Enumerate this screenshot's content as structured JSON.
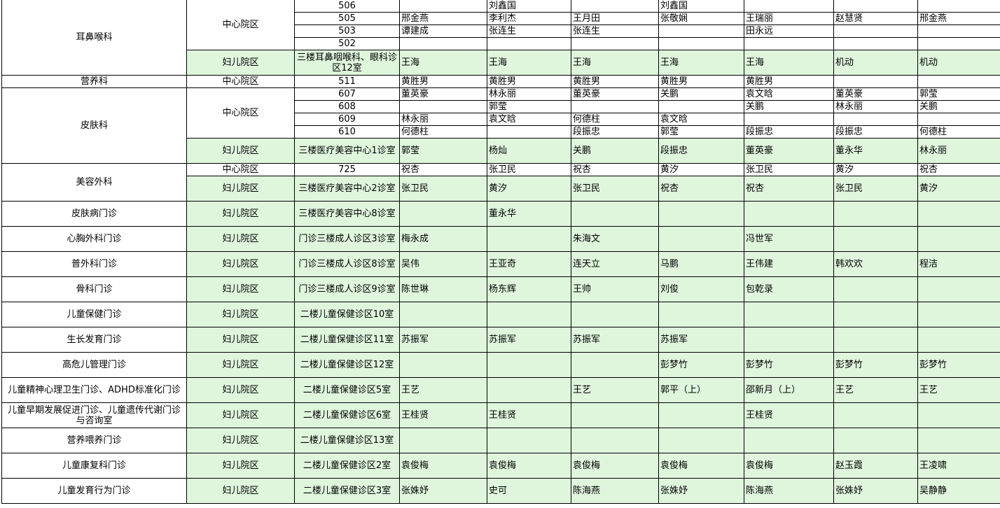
{
  "colors": {
    "green_fill": "#dff6dd",
    "border": "#000000"
  },
  "rows": [
    {
      "dept": "耳鼻喉科",
      "dept_span": 5,
      "campus": "中心院区",
      "campus_span": 4,
      "room": "506",
      "cells": [
        "",
        "刘鑫国",
        "",
        "刘鑫国",
        "",
        "",
        ""
      ],
      "green": false,
      "tall": false
    },
    {
      "room": "505",
      "cells": [
        "邢金燕",
        "李利杰",
        "王月田",
        "张敬娴",
        "王瑞丽",
        "赵慧贤",
        "邢金燕"
      ],
      "green": false,
      "tall": false
    },
    {
      "room": "503",
      "cells": [
        "谭建成",
        "张连生",
        "张连生",
        "",
        "田永远",
        "",
        ""
      ],
      "green": false,
      "tall": false
    },
    {
      "room": "502",
      "cells": [
        "",
        "",
        "",
        "",
        "",
        "",
        ""
      ],
      "green": false,
      "tall": false
    },
    {
      "campus": "妇儿院区",
      "campus_span": 1,
      "room": "三楼耳鼻咽喉科、眼科诊区12室",
      "cells": [
        "王海",
        "王海",
        "王海",
        "王海",
        "王海",
        "机动",
        "机动"
      ],
      "green": true,
      "tall": true
    },
    {
      "dept": "营养科",
      "dept_span": 1,
      "campus": "中心院区",
      "campus_span": 1,
      "room": "511",
      "cells": [
        "黄胜男",
        "黄胜男",
        "黄胜男",
        "黄胜男",
        "黄胜男",
        "",
        ""
      ],
      "green": false,
      "tall": false
    },
    {
      "dept": "皮肤科",
      "dept_span": 5,
      "campus": "中心院区",
      "campus_span": 4,
      "room": "607",
      "cells": [
        "董英豪",
        "林永丽",
        "董英豪",
        "关鹏",
        "袁文晗",
        "董英豪",
        "郭莹"
      ],
      "green": false,
      "tall": false
    },
    {
      "room": "608",
      "cells": [
        "",
        "郭莹",
        "",
        "",
        "关鹏",
        "林永丽",
        "关鹏"
      ],
      "green": false,
      "tall": false
    },
    {
      "room": "609",
      "cells": [
        "林永丽",
        "袁文晗",
        "何德柱",
        "袁文晗",
        "",
        "",
        ""
      ],
      "green": false,
      "tall": false
    },
    {
      "room": "610",
      "cells": [
        "何德柱",
        "",
        "段振忠",
        "郭莹",
        "段振忠",
        "段振忠",
        "何德柱"
      ],
      "green": false,
      "tall": false
    },
    {
      "campus": "妇儿院区",
      "campus_span": 1,
      "room": "三楼医疗美容中心1诊室",
      "cells": [
        "郭莹",
        "杨灿",
        "关鹏",
        "段振忠",
        "董英豪",
        "董永华",
        "林永丽"
      ],
      "green": true,
      "tall": true
    },
    {
      "dept": "美容外科",
      "dept_span": 2,
      "campus": "中心院区",
      "campus_span": 1,
      "room": "725",
      "cells": [
        "祝杏",
        "张卫民",
        "祝杏",
        "黄汐",
        "张卫民",
        "黄汐",
        "祝杏"
      ],
      "green": false,
      "tall": false
    },
    {
      "campus": "妇儿院区",
      "campus_span": 1,
      "room": "三楼医疗美容中心2诊室",
      "cells": [
        "张卫民",
        "黄汐",
        "张卫民",
        "祝杏",
        "祝杏",
        "张卫民",
        "黄汐"
      ],
      "green": true,
      "tall": true
    },
    {
      "dept": "皮肤病门诊",
      "dept_span": 1,
      "campus": "妇儿院区",
      "campus_span": 1,
      "room": "三楼医疗美容中心8诊室",
      "cells": [
        "",
        "董永华",
        "",
        "",
        "",
        "",
        ""
      ],
      "green": true,
      "tall": true
    },
    {
      "dept": "心胸外科门诊",
      "dept_span": 1,
      "campus": "妇儿院区",
      "campus_span": 1,
      "room": "门诊三楼成人诊区3诊室",
      "cells": [
        "梅永成",
        "",
        "朱海文",
        "",
        "冯世军",
        "",
        ""
      ],
      "green": true,
      "tall": true
    },
    {
      "dept": "普外科门诊",
      "dept_span": 1,
      "campus": "妇儿院区",
      "campus_span": 1,
      "room": "门诊三楼成人诊区8诊室",
      "cells": [
        "吴伟",
        "王亚奇",
        "连天立",
        "马鹏",
        "王伟建",
        "韩欢欢",
        "程洁"
      ],
      "green": true,
      "tall": true
    },
    {
      "dept": "骨科门诊",
      "dept_span": 1,
      "campus": "妇儿院区",
      "campus_span": 1,
      "room": "门诊三楼成人诊区9诊室",
      "cells": [
        "陈世琳",
        "杨东辉",
        "王帅",
        "刘俊",
        "包乾录",
        "",
        ""
      ],
      "green": true,
      "tall": true
    },
    {
      "dept": "儿童保健门诊",
      "dept_span": 1,
      "campus": "妇儿院区",
      "campus_span": 1,
      "room": "二楼儿童保健诊区10室",
      "cells": [
        "",
        "",
        "",
        "",
        "",
        "",
        ""
      ],
      "green": true,
      "tall": true
    },
    {
      "dept": "生长发育门诊",
      "dept_span": 1,
      "campus": "妇儿院区",
      "campus_span": 1,
      "room": "二楼儿童保健诊区11室",
      "cells": [
        "苏振军",
        "苏振军",
        "苏振军",
        "苏振军",
        "",
        "",
        ""
      ],
      "green": true,
      "tall": true
    },
    {
      "dept": "高危儿管理门诊",
      "dept_span": 1,
      "campus": "妇儿院区",
      "campus_span": 1,
      "room": "二楼儿童保健诊区12室",
      "cells": [
        "",
        "",
        "",
        "彭梦竹",
        "彭梦竹",
        "彭梦竹",
        "彭梦竹"
      ],
      "green": true,
      "tall": true
    },
    {
      "dept": "儿童精神心理卫生门诊、ADHD标准化门诊",
      "dept_span": 1,
      "campus": "妇儿院区",
      "campus_span": 1,
      "room": "二楼儿童保健诊区5室",
      "cells": [
        "王艺",
        "",
        "王艺",
        "郭平（上）",
        "邵新月（上）",
        "王艺",
        "王艺"
      ],
      "green": true,
      "tall": true
    },
    {
      "dept": "儿童早期发展促进门诊、儿童遗传代谢门诊与咨询室",
      "dept_span": 1,
      "campus": "妇儿院区",
      "campus_span": 1,
      "room": "二楼儿童保健诊区6室",
      "cells": [
        "王桂贤",
        "王桂贤",
        "",
        "",
        "王桂贤",
        "",
        ""
      ],
      "green": true,
      "tall": true
    },
    {
      "dept": "营养喂养门诊",
      "dept_span": 1,
      "campus": "妇儿院区",
      "campus_span": 1,
      "room": "二楼儿童保健诊区13室",
      "cells": [
        "",
        "",
        "",
        "",
        "",
        "",
        ""
      ],
      "green": true,
      "tall": true
    },
    {
      "dept": "儿童康复科门诊",
      "dept_span": 1,
      "campus": "妇儿院区",
      "campus_span": 1,
      "room": "二楼儿童保健诊区2室",
      "cells": [
        "袁俊梅",
        "袁俊梅",
        "袁俊梅",
        "袁俊梅",
        "袁俊梅",
        "赵玉霞",
        "王凌啸"
      ],
      "green": true,
      "tall": true
    },
    {
      "dept": "儿童发育行为门诊",
      "dept_span": 1,
      "campus": "妇儿院区",
      "campus_span": 1,
      "room": "二楼儿童保健诊区3室",
      "cells": [
        "张姝妤",
        "史可",
        "陈海燕",
        "张姝妤",
        "陈海燕",
        "张姝妤",
        "吴静静"
      ],
      "green": true,
      "tall": true
    }
  ]
}
